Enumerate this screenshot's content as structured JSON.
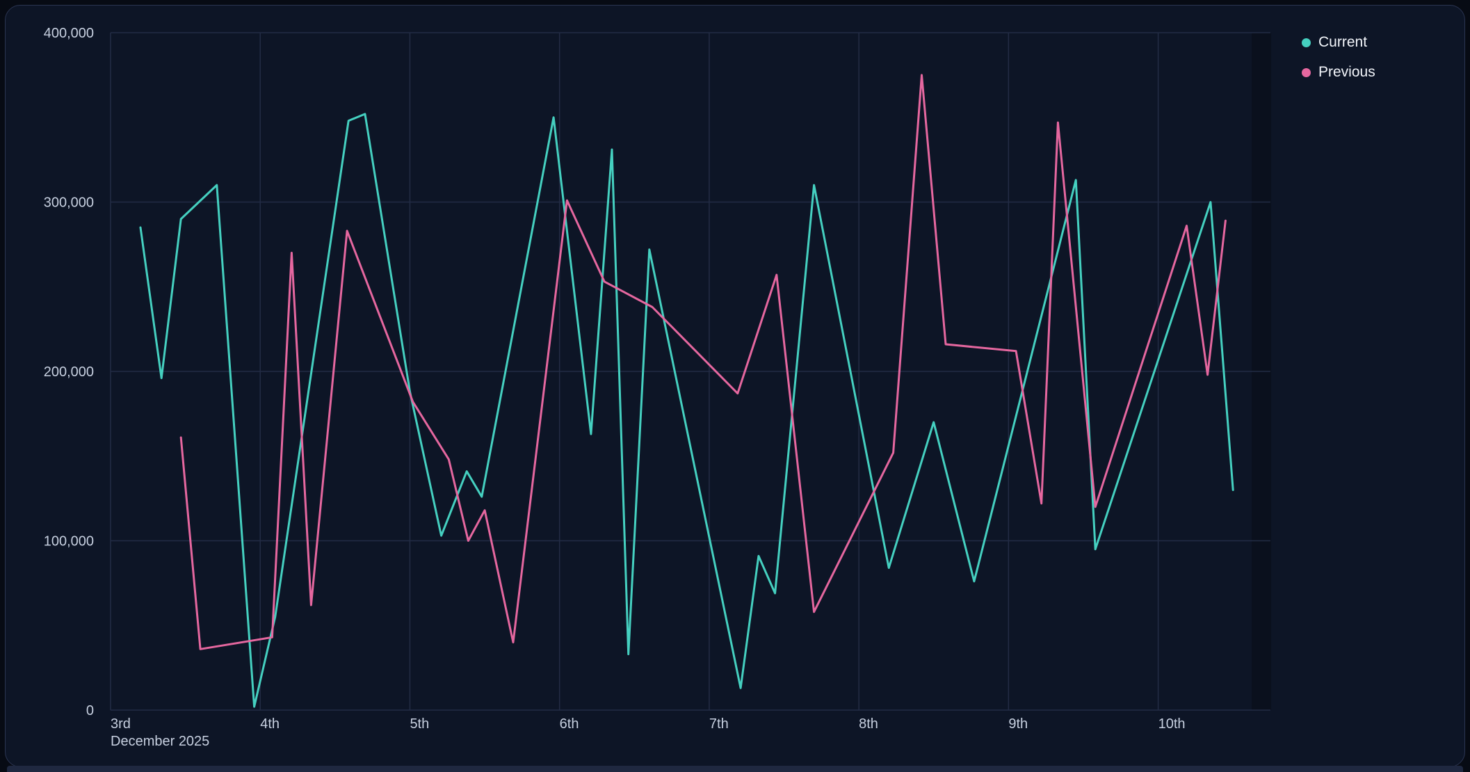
{
  "panel": {
    "background": "#0d1526",
    "border_color": "#2b3552",
    "grid_color": "#232c45",
    "future_band_color": "#0a101d",
    "axis_text_color": "#c7d0e0"
  },
  "chart_data": {
    "type": "line",
    "title": "",
    "grid": true,
    "legend_position": "top-right",
    "x_axis": {
      "title": "December 2025",
      "unit": "day of month",
      "min": 3,
      "max": 10.75,
      "tick_positions": [
        3,
        4,
        5,
        6,
        7,
        8,
        9,
        10
      ],
      "tick_labels": [
        "3rd",
        "4th",
        "5th",
        "6th",
        "7th",
        "8th",
        "9th",
        "10th"
      ]
    },
    "y_axis": {
      "min": 0,
      "max": 400000,
      "tick_values": [
        0,
        100000,
        200000,
        300000,
        400000
      ],
      "tick_labels": [
        "0",
        "100,000",
        "200,000",
        "300,000",
        "400,000"
      ]
    },
    "series": [
      {
        "name": "Current",
        "color": "#45d0c0",
        "points": [
          [
            3.2,
            285000
          ],
          [
            3.34,
            196000
          ],
          [
            3.47,
            290000
          ],
          [
            3.71,
            310000
          ],
          [
            3.96,
            2000
          ],
          [
            4.1,
            55000
          ],
          [
            4.59,
            348000
          ],
          [
            4.7,
            352000
          ],
          [
            5.0,
            188000
          ],
          [
            5.21,
            103000
          ],
          [
            5.38,
            141000
          ],
          [
            5.48,
            126000
          ],
          [
            5.96,
            350000
          ],
          [
            6.21,
            163000
          ],
          [
            6.35,
            331000
          ],
          [
            6.46,
            33000
          ],
          [
            6.6,
            272000
          ],
          [
            7.21,
            13000
          ],
          [
            7.33,
            91000
          ],
          [
            7.44,
            69000
          ],
          [
            7.7,
            310000
          ],
          [
            8.2,
            84000
          ],
          [
            8.5,
            170000
          ],
          [
            8.77,
            76000
          ],
          [
            9.45,
            313000
          ],
          [
            9.58,
            95000
          ],
          [
            10.35,
            300000
          ],
          [
            10.5,
            130000
          ]
        ]
      },
      {
        "name": "Previous",
        "color": "#e5679f",
        "points": [
          [
            3.47,
            161000
          ],
          [
            3.6,
            36000
          ],
          [
            4.08,
            43000
          ],
          [
            4.21,
            270000
          ],
          [
            4.34,
            62000
          ],
          [
            4.58,
            283000
          ],
          [
            5.02,
            182000
          ],
          [
            5.26,
            148000
          ],
          [
            5.39,
            100000
          ],
          [
            5.5,
            118000
          ],
          [
            5.69,
            40000
          ],
          [
            6.05,
            301000
          ],
          [
            6.3,
            253000
          ],
          [
            6.62,
            238000
          ],
          [
            7.0,
            204000
          ],
          [
            7.19,
            187000
          ],
          [
            7.45,
            257000
          ],
          [
            7.7,
            58000
          ],
          [
            8.23,
            152000
          ],
          [
            8.42,
            375000
          ],
          [
            8.58,
            216000
          ],
          [
            9.05,
            212000
          ],
          [
            9.22,
            122000
          ],
          [
            9.33,
            347000
          ],
          [
            9.58,
            120000
          ],
          [
            10.19,
            286000
          ],
          [
            10.33,
            198000
          ],
          [
            10.45,
            289000
          ]
        ]
      }
    ]
  }
}
